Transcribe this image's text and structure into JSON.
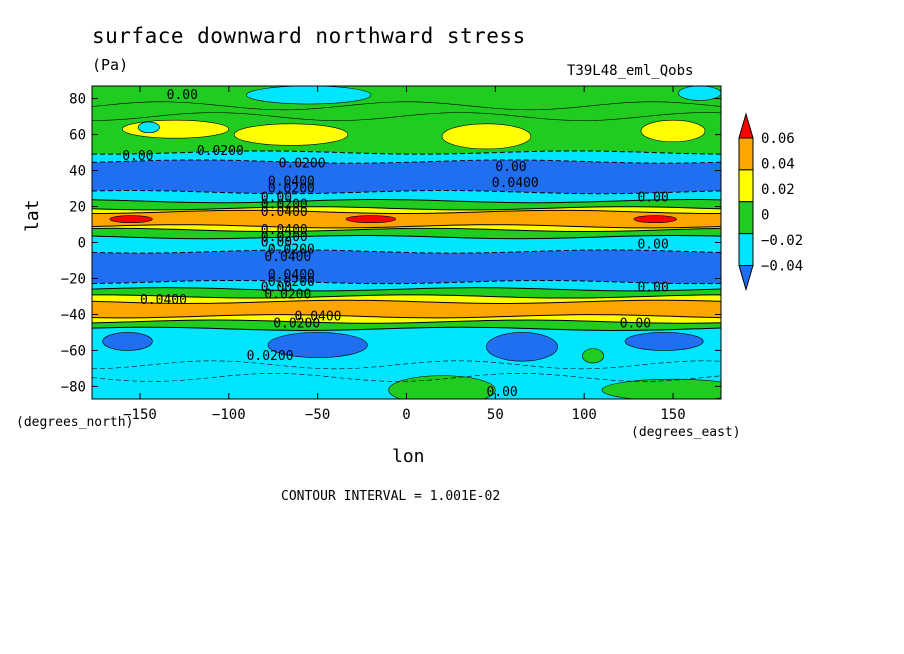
{
  "title": "surface downward northward stress",
  "units": "(Pa)",
  "run_label": "T39L48_eml_Qobs",
  "interval_text": "CONTOUR INTERVAL = 1.001E-02",
  "chart_data": {
    "type": "heatmap",
    "title": "surface downward northward stress",
    "xlabel": "lon",
    "ylabel": "lat",
    "x_unit": "(degrees_east)",
    "y_unit": "(degrees_north)",
    "xlim": [
      -177,
      177
    ],
    "ylim": [
      -87,
      87
    ],
    "x_ticks": [
      -150,
      -100,
      -50,
      0,
      50,
      100,
      150
    ],
    "y_ticks": [
      80,
      60,
      40,
      20,
      0,
      -20,
      -40,
      -60,
      -80
    ],
    "colorbar": {
      "levels": [
        -0.04,
        -0.02,
        0,
        0.02,
        0.04,
        0.06
      ],
      "tick_labels": [
        "0.06",
        "0.04",
        "0.02",
        "0",
        "−0.02",
        "−0.04"
      ],
      "colors": [
        "#1f6ff0",
        "#00e5ff",
        "#1fcc1f",
        "#ffff00",
        "#ffa500",
        "#ff0000"
      ]
    },
    "bands": [
      {
        "lat_from": 87,
        "lat_to": 50,
        "value": 0.0,
        "color": "#1fcc1f"
      },
      {
        "lat_from": 50,
        "lat_to": 45,
        "value": -0.01,
        "color": "#00e5ff"
      },
      {
        "lat_from": 45,
        "lat_to": 28,
        "value": -0.03,
        "color": "#1f6ff0"
      },
      {
        "lat_from": 28,
        "lat_to": 23,
        "value": -0.01,
        "color": "#00e5ff"
      },
      {
        "lat_from": 23,
        "lat_to": 19,
        "value": 0.01,
        "color": "#1fcc1f"
      },
      {
        "lat_from": 19,
        "lat_to": 17,
        "value": 0.03,
        "color": "#ffff00"
      },
      {
        "lat_from": 17,
        "lat_to": 9,
        "value": 0.05,
        "color": "#ffa500"
      },
      {
        "lat_from": 9,
        "lat_to": 7,
        "value": 0.03,
        "color": "#ffff00"
      },
      {
        "lat_from": 7,
        "lat_to": 3,
        "value": 0.01,
        "color": "#1fcc1f"
      },
      {
        "lat_from": 3,
        "lat_to": -5,
        "value": -0.01,
        "color": "#00e5ff"
      },
      {
        "lat_from": -5,
        "lat_to": -22,
        "value": -0.03,
        "color": "#1f6ff0"
      },
      {
        "lat_from": -22,
        "lat_to": -26,
        "value": -0.01,
        "color": "#00e5ff"
      },
      {
        "lat_from": -26,
        "lat_to": -30,
        "value": 0.01,
        "color": "#1fcc1f"
      },
      {
        "lat_from": -30,
        "lat_to": -33,
        "value": 0.03,
        "color": "#ffff00"
      },
      {
        "lat_from": -33,
        "lat_to": -41,
        "value": 0.05,
        "color": "#ffa500"
      },
      {
        "lat_from": -41,
        "lat_to": -44,
        "value": 0.03,
        "color": "#ffff00"
      },
      {
        "lat_from": -44,
        "lat_to": -48,
        "value": 0.01,
        "color": "#1fcc1f"
      },
      {
        "lat_from": -48,
        "lat_to": -87,
        "value": -0.01,
        "color": "#00e5ff"
      }
    ],
    "patches": [
      {
        "lon": -130,
        "lat": 63,
        "dlon": 30,
        "dlat": 5,
        "color": "#ffff00"
      },
      {
        "lon": -65,
        "lat": 60,
        "dlon": 32,
        "dlat": 6,
        "color": "#ffff00"
      },
      {
        "lon": 45,
        "lat": 59,
        "dlon": 25,
        "dlat": 7,
        "color": "#ffff00"
      },
      {
        "lon": 150,
        "lat": 62,
        "dlon": 18,
        "dlat": 6,
        "color": "#ffff00"
      },
      {
        "lon": -55,
        "lat": 82,
        "dlon": 35,
        "dlat": 5,
        "color": "#00e5ff"
      },
      {
        "lon": 165,
        "lat": 83,
        "dlon": 12,
        "dlat": 4,
        "color": "#00e5ff"
      },
      {
        "lon": -145,
        "lat": 64,
        "dlon": 6,
        "dlat": 3,
        "color": "#00e5ff"
      },
      {
        "lon": -155,
        "lat": 13,
        "dlon": 12,
        "dlat": 2,
        "color": "#ff0000"
      },
      {
        "lon": -20,
        "lat": 13,
        "dlon": 14,
        "dlat": 2,
        "color": "#ff0000"
      },
      {
        "lon": 140,
        "lat": 13,
        "dlon": 12,
        "dlat": 2,
        "color": "#ff0000"
      },
      {
        "lon": -50,
        "lat": -57,
        "dlon": 28,
        "dlat": 7,
        "color": "#1f6ff0"
      },
      {
        "lon": 65,
        "lat": -58,
        "dlon": 20,
        "dlat": 8,
        "color": "#1f6ff0"
      },
      {
        "lon": 145,
        "lat": -55,
        "dlon": 22,
        "dlat": 5,
        "color": "#1f6ff0"
      },
      {
        "lon": -157,
        "lat": -55,
        "dlon": 14,
        "dlat": 5,
        "color": "#1f6ff0"
      },
      {
        "lon": 20,
        "lat": -82,
        "dlon": 30,
        "dlat": 8,
        "color": "#1fcc1f"
      },
      {
        "lon": 150,
        "lat": -82,
        "dlon": 40,
        "dlat": 6,
        "color": "#1fcc1f"
      },
      {
        "lon": 105,
        "lat": -63,
        "dlon": 6,
        "dlat": 4,
        "color": "#1fcc1f"
      }
    ],
    "contour_labels": [
      {
        "text": "0.00",
        "lon": -135,
        "lat": 82
      },
      {
        "text": "0.00",
        "lon": -160,
        "lat": 48
      },
      {
        "text": "0.0200",
        "lon": -118,
        "lat": 51
      },
      {
        "text": "0.0200",
        "lon": -72,
        "lat": 44
      },
      {
        "text": "0.0400",
        "lon": -78,
        "lat": 34
      },
      {
        "text": "0.0200",
        "lon": -78,
        "lat": 30
      },
      {
        "text": "0.00",
        "lon": -82,
        "lat": 25
      },
      {
        "text": "0.0200",
        "lon": -82,
        "lat": 21
      },
      {
        "text": "0.0400",
        "lon": -82,
        "lat": 17
      },
      {
        "text": "0.0400",
        "lon": -82,
        "lat": 7
      },
      {
        "text": "0.0200",
        "lon": -82,
        "lat": 3
      },
      {
        "text": "0.00",
        "lon": -82,
        "lat": 0
      },
      {
        "text": "0.0200",
        "lon": -78,
        "lat": -4
      },
      {
        "text": "0.0400",
        "lon": -80,
        "lat": -8
      },
      {
        "text": "0.0400",
        "lon": -78,
        "lat": -18
      },
      {
        "text": "0.0200",
        "lon": -78,
        "lat": -22
      },
      {
        "text": "0.00",
        "lon": -82,
        "lat": -25
      },
      {
        "text": "0.0200",
        "lon": -80,
        "lat": -29
      },
      {
        "text": "0.0400",
        "lon": -150,
        "lat": -32
      },
      {
        "text": "0.0400",
        "lon": -63,
        "lat": -41
      },
      {
        "text": "0.0200",
        "lon": -75,
        "lat": -45
      },
      {
        "text": "0.00",
        "lon": 120,
        "lat": -45
      },
      {
        "text": "0.0200",
        "lon": -90,
        "lat": -63
      },
      {
        "text": "0.00",
        "lon": 45,
        "lat": -83
      },
      {
        "text": "0.00",
        "lon": 50,
        "lat": 42
      },
      {
        "text": "0.0400",
        "lon": 48,
        "lat": 33
      },
      {
        "text": "0.00",
        "lon": 130,
        "lat": 25
      },
      {
        "text": "0.00",
        "lon": 130,
        "lat": -1
      },
      {
        "text": "0.00",
        "lon": 130,
        "lat": -25
      }
    ]
  }
}
